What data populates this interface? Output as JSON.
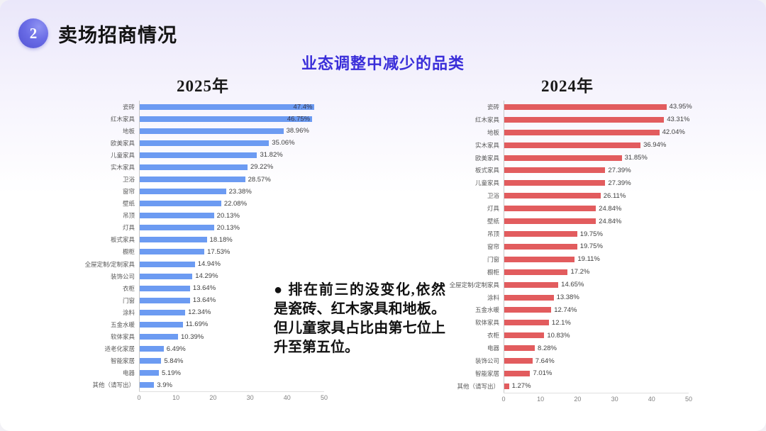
{
  "header": {
    "section_number": "2",
    "title": "卖场招商情况"
  },
  "subtitle": "业态调整中减少的品类",
  "annotation": {
    "text": "● 排在前三的没变化,依然是瓷砖、红木家具和地板。但儿童家具占比由第七位上升至第五位。"
  },
  "colors": {
    "bar_blue": "#6c9bf2",
    "bar_red": "#e25c5e",
    "subtitle_accent": "#3a2ed9",
    "badge_purple": "#5152d2"
  },
  "chart_data": [
    {
      "type": "bar",
      "orientation": "horizontal",
      "title": "2025年",
      "color": "#6c9bf2",
      "xlim": [
        0,
        50
      ],
      "xticks": [
        0,
        10,
        20,
        30,
        40,
        50
      ],
      "grid": false,
      "legend": false,
      "categories": [
        "瓷砖",
        "红木家具",
        "地板",
        "欧美家具",
        "儿童家具",
        "实木家具",
        "卫浴",
        "窗帘",
        "壁纸",
        "吊顶",
        "灯具",
        "板式家具",
        "橱柜",
        "全屋定制/定制家具",
        "装饰公司",
        "衣柜",
        "门窗",
        "涂料",
        "五金水暖",
        "软体家具",
        "适老化家居",
        "智能家居",
        "电器",
        "其他（请写出）"
      ],
      "values": [
        47.4,
        46.75,
        38.96,
        35.06,
        31.82,
        29.22,
        28.57,
        23.38,
        22.08,
        20.13,
        20.13,
        18.18,
        17.53,
        14.94,
        14.29,
        13.64,
        13.64,
        12.34,
        11.69,
        10.39,
        6.49,
        5.84,
        5.19,
        3.9
      ],
      "labels": [
        "47.4%",
        "46.75%",
        "38.96%",
        "35.06%",
        "31.82%",
        "29.22%",
        "28.57%",
        "23.38%",
        "22.08%",
        "20.13%",
        "20.13%",
        "18.18%",
        "17.53%",
        "14.94%",
        "14.29%",
        "13.64%",
        "13.64%",
        "12.34%",
        "11.69%",
        "10.39%",
        "6.49%",
        "5.84%",
        "5.19%",
        "3.9%"
      ]
    },
    {
      "type": "bar",
      "orientation": "horizontal",
      "title": "2024年",
      "color": "#e25c5e",
      "xlim": [
        0,
        50
      ],
      "xticks": [
        0,
        10,
        20,
        30,
        40,
        50
      ],
      "grid": false,
      "legend": false,
      "categories": [
        "瓷砖",
        "红木家具",
        "地板",
        "实木家具",
        "欧美家具",
        "板式家具",
        "儿童家具",
        "卫浴",
        "灯具",
        "壁纸",
        "吊顶",
        "窗帘",
        "门窗",
        "橱柜",
        "全屋定制/定制家具",
        "涂料",
        "五金水暖",
        "软体家具",
        "衣柜",
        "电器",
        "装饰公司",
        "智能家居",
        "其他（请写出）"
      ],
      "values": [
        43.95,
        43.31,
        42.04,
        36.94,
        31.85,
        27.39,
        27.39,
        26.11,
        24.84,
        24.84,
        19.75,
        19.75,
        19.11,
        17.2,
        14.65,
        13.38,
        12.74,
        12.1,
        10.83,
        8.28,
        7.64,
        7.01,
        1.27
      ],
      "labels": [
        "43.95%",
        "43.31%",
        "42.04%",
        "36.94%",
        "31.85%",
        "27.39%",
        "27.39%",
        "26.11%",
        "24.84%",
        "24.84%",
        "19.75%",
        "19.75%",
        "19.11%",
        "17.2%",
        "14.65%",
        "13.38%",
        "12.74%",
        "12.1%",
        "10.83%",
        "8.28%",
        "7.64%",
        "7.01%",
        "1.27%"
      ]
    }
  ]
}
